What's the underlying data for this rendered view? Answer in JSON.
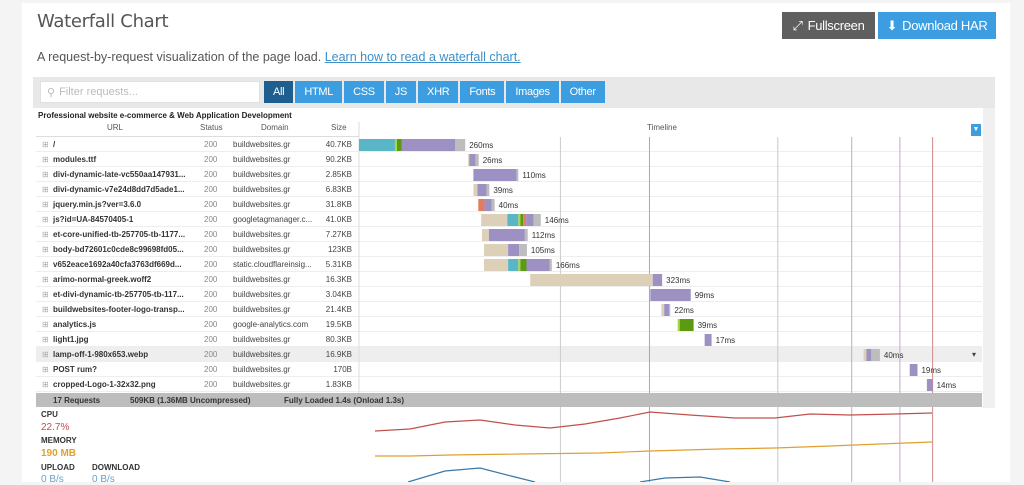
{
  "header": {
    "title": "Waterfall Chart",
    "fullscreen_label": "Fullscreen",
    "download_label": "Download HAR",
    "description": "A request-by-request visualization of the page load.",
    "learn_link": "Learn how to read a waterfall chart."
  },
  "filter": {
    "placeholder": "Filter requests...",
    "tabs": [
      "All",
      "HTML",
      "CSS",
      "JS",
      "XHR",
      "Fonts",
      "Images",
      "Other"
    ],
    "active": "All"
  },
  "table": {
    "site_title": "Professional website e-commerce & Web Application Development",
    "columns": {
      "url": "URL",
      "status": "Status",
      "domain": "Domain",
      "size": "Size",
      "timeline": "Timeline"
    },
    "colors": {
      "blocked": "#ddd0b8",
      "dns": "#5ab6c6",
      "connect": "#a6d64a",
      "ssl": "#5c9a12",
      "redirect": "#e27c5e",
      "wait": "#9d91c4",
      "receive": "#bdbdbd"
    },
    "rows": [
      {
        "url": "/",
        "status": "200",
        "domain": "buildwebsites.gr",
        "size": "40.7KB",
        "start_ms": 0,
        "duration": "260ms",
        "segments": [
          [
            "dns",
            88
          ],
          [
            "connect",
            5
          ],
          [
            "ssl",
            12
          ],
          [
            "wait",
            130
          ],
          [
            "receive",
            25
          ]
        ]
      },
      {
        "url": "modules.ttf",
        "status": "200",
        "domain": "buildwebsites.gr",
        "size": "90.2KB",
        "start_ms": 267,
        "duration": "26ms",
        "segments": [
          [
            "blocked",
            3
          ],
          [
            "wait",
            15
          ],
          [
            "receive",
            8
          ]
        ]
      },
      {
        "url": "divi-dynamic-late-vc550aa147931...",
        "status": "200",
        "domain": "buildwebsites.gr",
        "size": "2.85KB",
        "start_ms": 280,
        "duration": "110ms",
        "segments": [
          [
            "wait",
            106
          ],
          [
            "receive",
            4
          ]
        ]
      },
      {
        "url": "divi-dynamic-v7e24d8dd7d5ade1...",
        "status": "200",
        "domain": "buildwebsites.gr",
        "size": "6.83KB",
        "start_ms": 280,
        "duration": "39ms",
        "segments": [
          [
            "blocked",
            10
          ],
          [
            "wait",
            22
          ],
          [
            "receive",
            7
          ]
        ]
      },
      {
        "url": "jquery.min.js?ver=3.6.0",
        "status": "200",
        "domain": "buildwebsites.gr",
        "size": "31.8KB",
        "start_ms": 292,
        "duration": "40ms",
        "segments": [
          [
            "redirect",
            15
          ],
          [
            "wait",
            18
          ],
          [
            "receive",
            7
          ]
        ]
      },
      {
        "url": "js?id=UA-84570405-1",
        "status": "200",
        "domain": "googletagmanager.c...",
        "size": "41.0KB",
        "start_ms": 299,
        "duration": "146ms",
        "segments": [
          [
            "blocked",
            64
          ],
          [
            "dns",
            27
          ],
          [
            "connect",
            5
          ],
          [
            "ssl",
            7
          ],
          [
            "redirect",
            7
          ],
          [
            "wait",
            18
          ],
          [
            "receive",
            18
          ]
        ]
      },
      {
        "url": "et-core-unified-tb-257705-tb-1177...",
        "status": "200",
        "domain": "buildwebsites.gr",
        "size": "7.27KB",
        "start_ms": 301,
        "duration": "112ms",
        "segments": [
          [
            "blocked",
            17
          ],
          [
            "wait",
            88
          ],
          [
            "receive",
            7
          ]
        ]
      },
      {
        "url": "body-bd72601c0cde8c99698fd05...",
        "status": "200",
        "domain": "buildwebsites.gr",
        "size": "123KB",
        "start_ms": 306,
        "duration": "105ms",
        "segments": [
          [
            "blocked",
            59
          ],
          [
            "wait",
            27
          ],
          [
            "receive",
            19
          ]
        ]
      },
      {
        "url": "v652eace1692a40cfa3763df669d...",
        "status": "200",
        "domain": "static.cloudflareinsig...",
        "size": "5.31KB",
        "start_ms": 306,
        "duration": "166ms",
        "segments": [
          [
            "blocked",
            59
          ],
          [
            "dns",
            25
          ],
          [
            "connect",
            5
          ],
          [
            "ssl",
            15
          ],
          [
            "wait",
            57
          ],
          [
            "receive",
            5
          ]
        ]
      },
      {
        "url": "arimo-normal-greek.woff2",
        "status": "200",
        "domain": "buildwebsites.gr",
        "size": "16.3KB",
        "start_ms": 419,
        "duration": "323ms",
        "segments": [
          [
            "blocked",
            300
          ],
          [
            "wait",
            23
          ]
        ]
      },
      {
        "url": "et-divi-dynamic-tb-257705-tb-117...",
        "status": "200",
        "domain": "buildwebsites.gr",
        "size": "3.04KB",
        "start_ms": 713,
        "duration": "99ms",
        "segments": [
          [
            "wait",
            99
          ]
        ]
      },
      {
        "url": "buildwebsites-footer-logo-transp...",
        "status": "200",
        "domain": "buildwebsites.gr",
        "size": "21.4KB",
        "start_ms": 740,
        "duration": "22ms",
        "segments": [
          [
            "blocked",
            7
          ],
          [
            "wait",
            12
          ],
          [
            "receive",
            3
          ]
        ]
      },
      {
        "url": "analytics.js",
        "status": "200",
        "domain": "google-analytics.com",
        "size": "19.5KB",
        "start_ms": 780,
        "duration": "39ms",
        "segments": [
          [
            "connect",
            5
          ],
          [
            "ssl",
            34
          ]
        ]
      },
      {
        "url": "light1.jpg",
        "status": "200",
        "domain": "buildwebsites.gr",
        "size": "80.3KB",
        "start_ms": 846,
        "duration": "17ms",
        "segments": [
          [
            "wait",
            17
          ]
        ]
      },
      {
        "url": "lamp-off-1-980x653.webp",
        "status": "200",
        "domain": "buildwebsites.gr",
        "size": "16.9KB",
        "start_ms": 1235,
        "duration": "40ms",
        "segments": [
          [
            "blocked",
            7
          ],
          [
            "wait",
            12
          ],
          [
            "receive",
            21
          ]
        ],
        "highlight": true
      },
      {
        "url": "POST rum?",
        "status": "200",
        "domain": "buildwebsites.gr",
        "size": "170B",
        "start_ms": 1348,
        "duration": "19ms",
        "segments": [
          [
            "wait",
            19
          ]
        ]
      },
      {
        "url": "cropped-Logo-1-32x32.png",
        "status": "200",
        "domain": "buildwebsites.gr",
        "size": "1.83KB",
        "start_ms": 1390,
        "duration": "14ms",
        "segments": [
          [
            "wait",
            14
          ]
        ]
      }
    ],
    "events": [
      {
        "ms": 493,
        "color": "#cccccc"
      },
      {
        "ms": 711,
        "color": "#7cb7d6"
      },
      {
        "ms": 1025,
        "color": "#b8cfd8"
      },
      {
        "ms": 1206,
        "color": "#c9a6cc"
      },
      {
        "ms": 1324,
        "color": "#c9a6cc"
      },
      {
        "ms": 1404,
        "color": "#d08a8a"
      }
    ],
    "timeline_max_ms": 1520,
    "footer": {
      "requests": "17 Requests",
      "size": "509KB  (1.36MB Uncompressed)",
      "loaded": "Fully Loaded 1.4s  (Onload 1.3s)"
    }
  },
  "metrics": {
    "cpu_label": "CPU",
    "cpu_value": "22.7%",
    "cpu_color": "#c0504d",
    "memory_label": "MEMORY",
    "memory_value": "190 MB",
    "memory_color": "#e0a030",
    "upload_label": "UPLOAD",
    "upload_value": "0 B/s",
    "download_label": "DOWNLOAD",
    "download_value": "0 B/s",
    "net_color": "#3a78a8"
  }
}
